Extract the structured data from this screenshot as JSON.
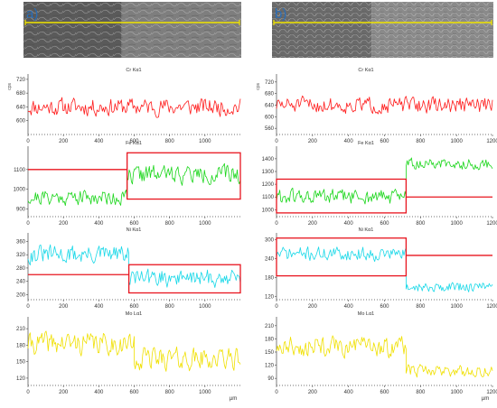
{
  "panels": [
    {
      "label": "a)",
      "label_color": "#2a6db6",
      "micrograph": {
        "left_tone": "#5a5a5a",
        "right_tone": "#7e7e7e",
        "scan_line_color": "#f2e600"
      },
      "x_unit": "µm",
      "charts": [
        {
          "title": "Cr Kα1",
          "y_unit": "cps",
          "color": "#ff1a1a"
        },
        {
          "title": "Fe Kα1",
          "y_unit": "",
          "color": "#1ad61a"
        },
        {
          "title": "Ni Kα1",
          "y_unit": "",
          "color": "#19d8e8"
        },
        {
          "title": "Mo Lα1",
          "y_unit": "",
          "color": "#f0e000"
        }
      ]
    },
    {
      "label": "b)",
      "label_color": "#2a6db6",
      "micrograph": {
        "left_tone": "#6a6a6a",
        "right_tone": "#8a8a8a",
        "scan_line_color": "#f2e600"
      },
      "x_unit": "µm",
      "charts": [
        {
          "title": "Cr Kα1",
          "y_unit": "cps",
          "color": "#ff1a1a"
        },
        {
          "title": "Fe Kα1",
          "y_unit": "",
          "color": "#1ad61a"
        },
        {
          "title": "Ni Kα1",
          "y_unit": "",
          "color": "#19d8e8"
        },
        {
          "title": "Mo Lα1",
          "y_unit": "",
          "color": "#f0e000"
        }
      ]
    }
  ],
  "highlight_color": "#e8141e",
  "chart_data": [
    {
      "type": "line",
      "title": "Cr Kα1",
      "panel": "a",
      "ylabel": "cps",
      "xlabel": "",
      "x_range": [
        0,
        1200
      ],
      "ylim": [
        565,
        725
      ],
      "x_ticks": [
        0,
        200,
        400,
        600,
        800,
        1000
      ],
      "y_ticks": [
        600,
        640,
        680,
        720
      ],
      "series": [
        {
          "segments": [
            {
              "x_start": 0,
              "x_end": 1200,
              "base": 640,
              "amplitude": 35,
              "seed": 11
            }
          ]
        }
      ],
      "annotations": []
    },
    {
      "type": "line",
      "title": "Fe Kα1",
      "panel": "a",
      "ylabel": "",
      "xlabel": "",
      "x_range": [
        0,
        1200
      ],
      "ylim": [
        870,
        1200
      ],
      "x_ticks": [
        0,
        200,
        400,
        600,
        800,
        1000
      ],
      "y_ticks": [
        900,
        1000,
        1100
      ],
      "series": [
        {
          "segments": [
            {
              "x_start": 0,
              "x_end": 560,
              "base": 960,
              "amplitude": 55,
              "seed": 21
            },
            {
              "x_start": 560,
              "x_end": 1200,
              "base": 1075,
              "amplitude": 65,
              "seed": 22
            }
          ]
        }
      ],
      "annotations": [
        {
          "kind": "level",
          "x0": 0,
          "x1": 560,
          "y": 1100
        },
        {
          "kind": "box",
          "x0": 560,
          "x1": 1200,
          "y0": 950,
          "y1": 1185
        }
      ]
    },
    {
      "type": "line",
      "title": "Ni Kα1",
      "panel": "a",
      "ylabel": "",
      "xlabel": "",
      "x_range": [
        0,
        1200
      ],
      "ylim": [
        190,
        375
      ],
      "x_ticks": [
        0,
        200,
        400,
        600,
        800,
        1000
      ],
      "y_ticks": [
        200,
        240,
        280,
        320,
        360
      ],
      "series": [
        {
          "segments": [
            {
              "x_start": 0,
              "x_end": 570,
              "base": 320,
              "amplitude": 38,
              "seed": 31
            },
            {
              "x_start": 570,
              "x_end": 1200,
              "base": 250,
              "amplitude": 38,
              "seed": 32
            }
          ]
        }
      ],
      "annotations": [
        {
          "kind": "level",
          "x0": 0,
          "x1": 570,
          "y": 260
        },
        {
          "kind": "box",
          "x0": 570,
          "x1": 1200,
          "y0": 205,
          "y1": 290
        }
      ]
    },
    {
      "type": "line",
      "title": "Mo Lα1",
      "panel": "a",
      "ylabel": "",
      "xlabel": "µm",
      "x_range": [
        0,
        1200
      ],
      "ylim": [
        110,
        225
      ],
      "x_ticks": [
        0,
        200,
        400,
        600,
        800,
        1000
      ],
      "y_ticks": [
        120,
        150,
        180,
        210
      ],
      "series": [
        {
          "segments": [
            {
              "x_start": 0,
              "x_end": 600,
              "base": 183,
              "amplitude": 28,
              "seed": 41
            },
            {
              "x_start": 600,
              "x_end": 1200,
              "base": 155,
              "amplitude": 28,
              "seed": 42
            }
          ]
        }
      ],
      "annotations": []
    },
    {
      "type": "line",
      "title": "Cr Kα1",
      "panel": "b",
      "ylabel": "cps",
      "xlabel": "",
      "x_range": [
        0,
        1200
      ],
      "ylim": [
        545,
        735
      ],
      "x_ticks": [
        0,
        200,
        400,
        600,
        800,
        1000,
        1200
      ],
      "y_ticks": [
        560,
        600,
        640,
        680,
        720
      ],
      "series": [
        {
          "segments": [
            {
              "x_start": 0,
              "x_end": 1200,
              "base": 640,
              "amplitude": 38,
              "seed": 51
            }
          ]
        }
      ],
      "annotations": []
    },
    {
      "type": "line",
      "title": "Fe Kα1",
      "panel": "b",
      "ylabel": "",
      "xlabel": "",
      "x_range": [
        0,
        1200
      ],
      "ylim": [
        960,
        1470
      ],
      "x_ticks": [
        0,
        200,
        400,
        600,
        800,
        1000,
        1200
      ],
      "y_ticks": [
        1000,
        1100,
        1200,
        1300,
        1400
      ],
      "series": [
        {
          "segments": [
            {
              "x_start": 0,
              "x_end": 720,
              "base": 1100,
              "amplitude": 85,
              "seed": 61
            },
            {
              "x_start": 720,
              "x_end": 1200,
              "base": 1360,
              "amplitude": 60,
              "seed": 62
            }
          ]
        }
      ],
      "annotations": [
        {
          "kind": "box",
          "x0": 0,
          "x1": 720,
          "y0": 975,
          "y1": 1240
        },
        {
          "kind": "level",
          "x0": 720,
          "x1": 1200,
          "y": 1100
        }
      ]
    },
    {
      "type": "line",
      "title": "Ni Kα1",
      "panel": "b",
      "ylabel": "",
      "xlabel": "",
      "x_range": [
        0,
        1200
      ],
      "ylim": [
        115,
        310
      ],
      "x_ticks": [
        0,
        200,
        400,
        600,
        800,
        1000,
        1200
      ],
      "y_ticks": [
        120,
        180,
        240,
        300
      ],
      "series": [
        {
          "segments": [
            {
              "x_start": 0,
              "x_end": 720,
              "base": 255,
              "amplitude": 30,
              "seed": 71
            },
            {
              "x_start": 720,
              "x_end": 1200,
              "base": 150,
              "amplitude": 22,
              "seed": 72
            }
          ]
        }
      ],
      "annotations": [
        {
          "kind": "box",
          "x0": 0,
          "x1": 720,
          "y0": 185,
          "y1": 305
        },
        {
          "kind": "level",
          "x0": 720,
          "x1": 1200,
          "y": 250
        }
      ]
    },
    {
      "type": "line",
      "title": "Mo Lα1",
      "panel": "b",
      "ylabel": "",
      "xlabel": "µm",
      "x_range": [
        0,
        1200
      ],
      "ylim": [
        78,
        222
      ],
      "x_ticks": [
        0,
        200,
        400,
        600,
        800,
        1000,
        1200
      ],
      "y_ticks": [
        90,
        120,
        150,
        180,
        210
      ],
      "series": [
        {
          "segments": [
            {
              "x_start": 0,
              "x_end": 720,
              "base": 162,
              "amplitude": 32,
              "seed": 81
            },
            {
              "x_start": 720,
              "x_end": 1200,
              "base": 108,
              "amplitude": 20,
              "seed": 82
            }
          ]
        }
      ],
      "annotations": []
    }
  ]
}
